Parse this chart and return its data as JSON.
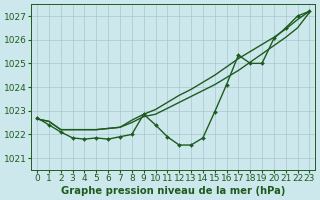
{
  "title": "Graphe pression niveau de la mer (hPa)",
  "background_color": "#cde8ed",
  "grid_color": "#a8c8cc",
  "line_color": "#1e5c1e",
  "x_values": [
    0,
    1,
    2,
    3,
    4,
    5,
    6,
    7,
    8,
    9,
    10,
    11,
    12,
    13,
    14,
    15,
    16,
    17,
    18,
    19,
    20,
    21,
    22,
    23
  ],
  "series_measured": [
    1022.7,
    1022.4,
    1022.1,
    1021.85,
    1021.8,
    1021.85,
    1021.8,
    1021.9,
    1022.0,
    1022.85,
    1022.4,
    1021.9,
    1021.55,
    1021.55,
    1021.85,
    1022.95,
    1024.1,
    1025.35,
    1025.0,
    1025.0,
    1026.05,
    1026.5,
    1027.0,
    1027.2
  ],
  "series_linear1": [
    1022.65,
    1022.55,
    1022.2,
    1022.2,
    1022.2,
    1022.2,
    1022.25,
    1022.3,
    1022.5,
    1022.75,
    1022.85,
    1023.1,
    1023.35,
    1023.6,
    1023.85,
    1024.1,
    1024.4,
    1024.7,
    1025.05,
    1025.4,
    1025.75,
    1026.1,
    1026.5,
    1027.15
  ],
  "series_linear2": [
    1022.65,
    1022.55,
    1022.2,
    1022.2,
    1022.2,
    1022.2,
    1022.25,
    1022.3,
    1022.6,
    1022.85,
    1023.05,
    1023.35,
    1023.65,
    1023.9,
    1024.2,
    1024.5,
    1024.85,
    1025.2,
    1025.5,
    1025.8,
    1026.1,
    1026.45,
    1026.85,
    1027.2
  ],
  "ylim": [
    1020.5,
    1027.5
  ],
  "yticks": [
    1021,
    1022,
    1023,
    1024,
    1025,
    1026,
    1027
  ],
  "xlim": [
    -0.5,
    23.5
  ],
  "xticks": [
    0,
    1,
    2,
    3,
    4,
    5,
    6,
    7,
    8,
    9,
    10,
    11,
    12,
    13,
    14,
    15,
    16,
    17,
    18,
    19,
    20,
    21,
    22,
    23
  ],
  "tick_fontsize": 6.5,
  "title_fontsize": 7.2,
  "line_width": 1.0,
  "marker_size": 2.0
}
